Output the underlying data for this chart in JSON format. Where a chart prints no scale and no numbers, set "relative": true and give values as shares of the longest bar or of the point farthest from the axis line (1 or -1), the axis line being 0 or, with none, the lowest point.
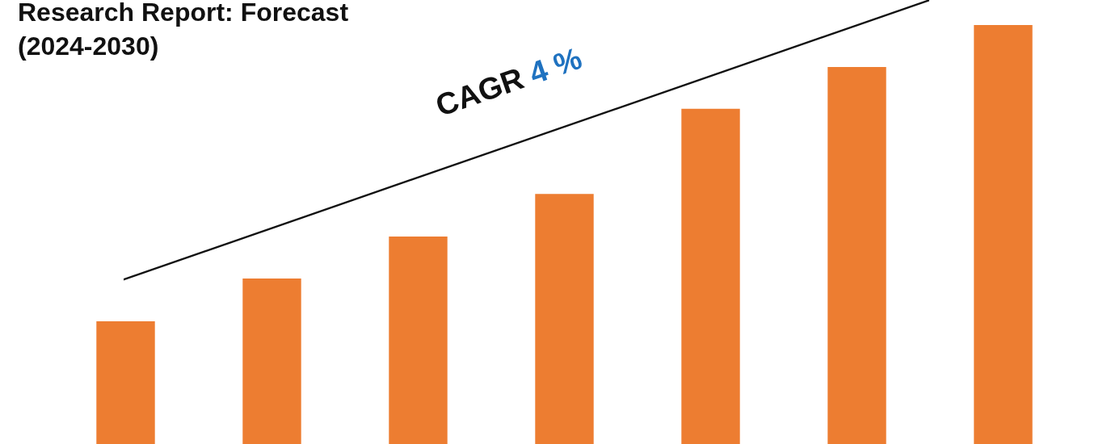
{
  "chart_data": {
    "type": "bar",
    "title": "Research Report: Forecast (2024-2030)",
    "categories": [
      null,
      null,
      null,
      null,
      null,
      null,
      null
    ],
    "values": [
      0.293,
      0.395,
      0.495,
      0.597,
      0.8,
      0.9,
      1
    ],
    "color": "#ed7d31",
    "relative": true,
    "annotations": [
      "CAGR 4 %"
    ]
  }
}
